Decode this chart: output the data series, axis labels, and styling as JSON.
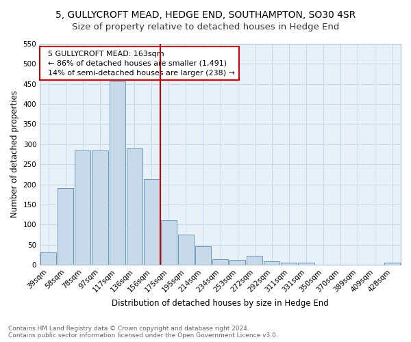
{
  "title": "5, GULLYCROFT MEAD, HEDGE END, SOUTHAMPTON, SO30 4SR",
  "subtitle": "Size of property relative to detached houses in Hedge End",
  "xlabel": "Distribution of detached houses by size in Hedge End",
  "ylabel": "Number of detached properties",
  "bar_labels": [
    "39sqm",
    "58sqm",
    "78sqm",
    "97sqm",
    "117sqm",
    "136sqm",
    "156sqm",
    "175sqm",
    "195sqm",
    "214sqm",
    "234sqm",
    "253sqm",
    "272sqm",
    "292sqm",
    "311sqm",
    "331sqm",
    "350sqm",
    "370sqm",
    "389sqm",
    "409sqm",
    "428sqm"
  ],
  "bar_values": [
    30,
    191,
    284,
    284,
    457,
    290,
    213,
    110,
    75,
    46,
    13,
    12,
    22,
    9,
    5,
    5,
    0,
    0,
    0,
    0,
    5
  ],
  "bar_color": "#c8daea",
  "bar_edge_color": "#6699bb",
  "vline_x": 7,
  "annotation_text": "  5 GULLYCROFT MEAD: 163sqm\n  ← 86% of detached houses are smaller (1,491)\n  14% of semi-detached houses are larger (238) →",
  "vline_color": "#cc0000",
  "annotation_box_edge": "#cc0000",
  "ylim": [
    0,
    550
  ],
  "yticks": [
    0,
    50,
    100,
    150,
    200,
    250,
    300,
    350,
    400,
    450,
    500,
    550
  ],
  "grid_color": "#c8d8e8",
  "bg_color": "#e8f0f8",
  "footer_text": "Contains HM Land Registry data © Crown copyright and database right 2024.\nContains public sector information licensed under the Open Government Licence v3.0.",
  "title_fontsize": 10,
  "subtitle_fontsize": 9.5,
  "xlabel_fontsize": 8.5,
  "ylabel_fontsize": 8.5,
  "tick_fontsize": 7.5,
  "annotation_fontsize": 8,
  "footer_fontsize": 6.5
}
